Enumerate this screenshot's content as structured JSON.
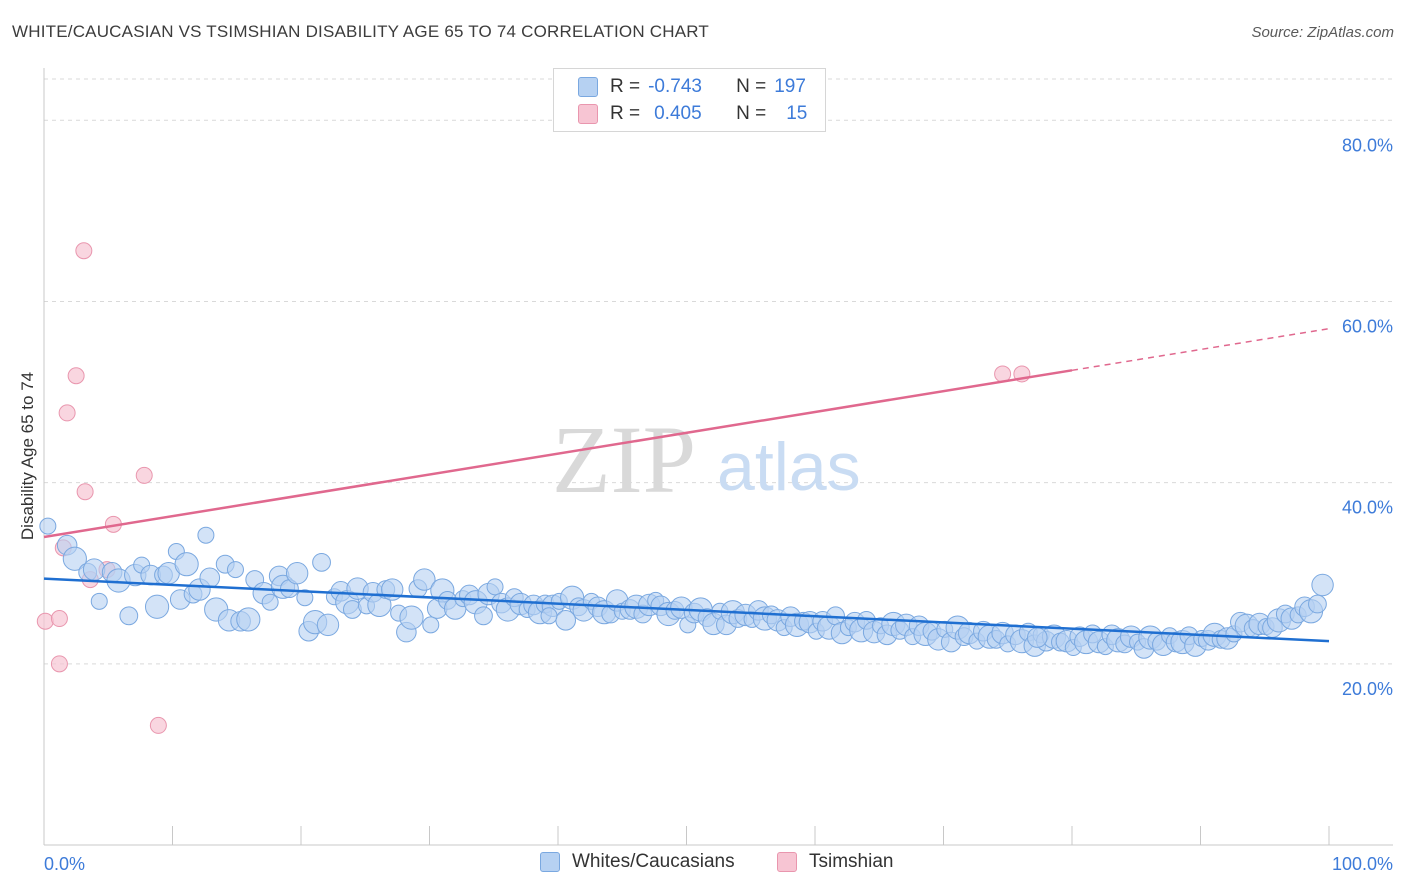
{
  "header": {
    "title": "WHITE/CAUCASIAN VS TSIMSHIAN DISABILITY AGE 65 TO 74 CORRELATION CHART",
    "source": "Source: ZipAtlas.com"
  },
  "watermark": {
    "zip": "ZIP",
    "atlas": "atlas"
  },
  "colors": {
    "blue_fill": "#b6d1f2",
    "blue_stroke": "#7aa8e0",
    "blue_line": "#1f6fd1",
    "pink_fill": "#f7c5d3",
    "pink_stroke": "#e996ae",
    "pink_line": "#e0688e",
    "axis_text": "#3d7bd9",
    "grid": "#d9d9d9"
  },
  "correlation_legend": [
    {
      "r_label": "R =",
      "r_value": "-0.743",
      "n_label": "N =",
      "n_value": "197",
      "series": "Whites/Caucasians"
    },
    {
      "r_label": "R =",
      "r_value": "0.405",
      "n_label": "N =",
      "n_value": "15",
      "series": "Tsimshian"
    }
  ],
  "chart_data": {
    "type": "scatter",
    "title": "WHITE/CAUCASIAN VS TSIMSHIAN DISABILITY AGE 65 TO 74 CORRELATION CHART",
    "xlabel": "",
    "ylabel": "Disability Age 65 to 74",
    "xlim": [
      0,
      100
    ],
    "ylim": [
      0,
      85
    ],
    "x_tick_labels": [
      "0.0%",
      "100.0%"
    ],
    "y_ticks": [
      20,
      40,
      60,
      80
    ],
    "y_tick_labels": [
      "20.0%",
      "40.0%",
      "60.0%",
      "80.0%"
    ],
    "grid": true,
    "legend_position": "bottom-center",
    "series": [
      {
        "name": "Whites/Caucasians",
        "r": -0.743,
        "n": 197,
        "trend": {
          "x": [
            0,
            100
          ],
          "y": [
            29.4,
            22.5
          ]
        },
        "points": [
          [
            0.3,
            35.2
          ],
          [
            1.8,
            33.1
          ],
          [
            2.4,
            31.6
          ],
          [
            3.4,
            30.1
          ],
          [
            3.9,
            30.4
          ],
          [
            4.3,
            26.9
          ],
          [
            5.3,
            30.1
          ],
          [
            5.8,
            29.2
          ],
          [
            6.6,
            25.3
          ],
          [
            7.1,
            29.8
          ],
          [
            7.6,
            30.9
          ],
          [
            8.3,
            29.8
          ],
          [
            8.8,
            26.3
          ],
          [
            9.3,
            29.8
          ],
          [
            9.7,
            30.0
          ],
          [
            10.3,
            32.4
          ],
          [
            10.6,
            27.1
          ],
          [
            11.1,
            31.0
          ],
          [
            11.6,
            27.7
          ],
          [
            12.1,
            28.2
          ],
          [
            12.6,
            34.2
          ],
          [
            12.9,
            29.5
          ],
          [
            13.4,
            26.0
          ],
          [
            14.1,
            31.0
          ],
          [
            14.4,
            24.8
          ],
          [
            14.9,
            30.4
          ],
          [
            15.3,
            24.7
          ],
          [
            15.9,
            24.9
          ],
          [
            16.4,
            29.3
          ],
          [
            17.1,
            27.8
          ],
          [
            17.6,
            26.8
          ],
          [
            18.3,
            29.7
          ],
          [
            18.6,
            28.5
          ],
          [
            19.1,
            28.3
          ],
          [
            19.7,
            30.0
          ],
          [
            20.3,
            27.3
          ],
          [
            20.6,
            23.6
          ],
          [
            21.1,
            24.6
          ],
          [
            21.6,
            31.2
          ],
          [
            22.1,
            24.3
          ],
          [
            22.6,
            27.4
          ],
          [
            23.1,
            28.0
          ],
          [
            23.6,
            26.8
          ],
          [
            24.0,
            26.0
          ],
          [
            24.4,
            28.3
          ],
          [
            25.1,
            26.4
          ],
          [
            25.6,
            27.9
          ],
          [
            26.1,
            26.5
          ],
          [
            26.6,
            28.2
          ],
          [
            27.1,
            28.2
          ],
          [
            27.6,
            25.6
          ],
          [
            28.2,
            23.5
          ],
          [
            28.6,
            25.1
          ],
          [
            29.1,
            28.3
          ],
          [
            29.6,
            29.3
          ],
          [
            30.1,
            24.3
          ],
          [
            30.6,
            26.1
          ],
          [
            31.0,
            28.1
          ],
          [
            31.4,
            27.0
          ],
          [
            32.0,
            26.1
          ],
          [
            32.6,
            27.2
          ],
          [
            33.1,
            27.6
          ],
          [
            33.6,
            26.8
          ],
          [
            34.2,
            25.3
          ],
          [
            34.6,
            27.7
          ],
          [
            35.1,
            28.5
          ],
          [
            35.6,
            26.7
          ],
          [
            36.1,
            26.0
          ],
          [
            36.6,
            27.3
          ],
          [
            37.1,
            26.6
          ],
          [
            37.6,
            26.0
          ],
          [
            38.1,
            26.5
          ],
          [
            38.6,
            25.7
          ],
          [
            39.0,
            26.6
          ],
          [
            39.6,
            26.4
          ],
          [
            40.1,
            26.9
          ],
          [
            40.6,
            24.8
          ],
          [
            41.1,
            27.3
          ],
          [
            41.6,
            26.3
          ],
          [
            42.0,
            25.9
          ],
          [
            42.6,
            26.9
          ],
          [
            43.1,
            26.3
          ],
          [
            43.6,
            25.7
          ],
          [
            44.1,
            25.5
          ],
          [
            44.6,
            27.0
          ],
          [
            45.0,
            25.8
          ],
          [
            45.6,
            26.0
          ],
          [
            46.1,
            26.3
          ],
          [
            46.6,
            25.5
          ],
          [
            47.1,
            26.5
          ],
          [
            47.6,
            27.0
          ],
          [
            48.0,
            26.4
          ],
          [
            48.6,
            25.5
          ],
          [
            49.1,
            25.9
          ],
          [
            49.6,
            26.2
          ],
          [
            50.1,
            24.3
          ],
          [
            50.6,
            25.6
          ],
          [
            51.1,
            26.0
          ],
          [
            51.6,
            25.1
          ],
          [
            52.1,
            24.4
          ],
          [
            52.6,
            25.8
          ],
          [
            53.1,
            24.3
          ],
          [
            53.6,
            25.7
          ],
          [
            54.0,
            25.0
          ],
          [
            54.6,
            25.4
          ],
          [
            55.1,
            24.9
          ],
          [
            55.6,
            25.9
          ],
          [
            56.1,
            25.0
          ],
          [
            56.6,
            25.4
          ],
          [
            57.1,
            24.8
          ],
          [
            57.6,
            24.0
          ],
          [
            58.1,
            25.2
          ],
          [
            58.6,
            24.3
          ],
          [
            59.1,
            24.7
          ],
          [
            59.6,
            24.6
          ],
          [
            60.1,
            23.6
          ],
          [
            60.6,
            24.7
          ],
          [
            61.1,
            24.0
          ],
          [
            61.6,
            25.3
          ],
          [
            62.1,
            23.4
          ],
          [
            62.6,
            24.0
          ],
          [
            63.1,
            24.6
          ],
          [
            63.6,
            23.7
          ],
          [
            64.0,
            24.8
          ],
          [
            64.6,
            23.5
          ],
          [
            65.1,
            24.2
          ],
          [
            65.6,
            23.2
          ],
          [
            66.1,
            24.4
          ],
          [
            66.6,
            23.7
          ],
          [
            67.1,
            24.3
          ],
          [
            67.6,
            23.0
          ],
          [
            68.1,
            24.2
          ],
          [
            68.6,
            23.3
          ],
          [
            69.1,
            23.6
          ],
          [
            69.6,
            22.7
          ],
          [
            70.1,
            23.8
          ],
          [
            70.6,
            22.4
          ],
          [
            71.1,
            24.0
          ],
          [
            71.6,
            23.0
          ],
          [
            72.0,
            23.4
          ],
          [
            72.6,
            22.5
          ],
          [
            73.1,
            23.6
          ],
          [
            73.6,
            23.0
          ],
          [
            74.1,
            22.7
          ],
          [
            74.6,
            23.4
          ],
          [
            75.0,
            22.2
          ],
          [
            75.6,
            23.2
          ],
          [
            76.1,
            22.5
          ],
          [
            76.6,
            23.5
          ],
          [
            77.1,
            22.0
          ],
          [
            77.6,
            23.2
          ],
          [
            78.0,
            22.5
          ],
          [
            78.6,
            23.0
          ],
          [
            79.1,
            22.4
          ],
          [
            79.6,
            22.5
          ],
          [
            80.1,
            21.8
          ],
          [
            80.6,
            23.0
          ],
          [
            81.1,
            22.4
          ],
          [
            81.6,
            23.3
          ],
          [
            82.1,
            22.4
          ],
          [
            82.6,
            21.9
          ],
          [
            83.1,
            23.2
          ],
          [
            83.6,
            22.6
          ],
          [
            84.1,
            22.2
          ],
          [
            84.6,
            23.0
          ],
          [
            85.1,
            22.4
          ],
          [
            85.6,
            21.7
          ],
          [
            86.1,
            22.9
          ],
          [
            86.6,
            22.5
          ],
          [
            87.1,
            22.1
          ],
          [
            87.6,
            23.1
          ],
          [
            88.1,
            22.4
          ],
          [
            88.6,
            22.4
          ],
          [
            89.1,
            23.1
          ],
          [
            89.6,
            22.0
          ],
          [
            90.1,
            22.8
          ],
          [
            90.6,
            22.6
          ],
          [
            91.1,
            23.2
          ],
          [
            91.6,
            22.7
          ],
          [
            92.1,
            22.8
          ],
          [
            92.6,
            23.3
          ],
          [
            93.1,
            24.6
          ],
          [
            93.6,
            24.2
          ],
          [
            94.1,
            23.9
          ],
          [
            94.6,
            24.4
          ],
          [
            95.1,
            24.1
          ],
          [
            95.6,
            24.0
          ],
          [
            96.1,
            24.8
          ],
          [
            96.6,
            25.5
          ],
          [
            97.1,
            25.0
          ],
          [
            97.6,
            25.4
          ],
          [
            98.1,
            26.3
          ],
          [
            98.6,
            25.8
          ],
          [
            99.1,
            26.6
          ],
          [
            99.5,
            28.7
          ],
          [
            39.3,
            25.3
          ],
          [
            77.3,
            22.9
          ]
        ]
      },
      {
        "name": "Tsimshian",
        "r": 0.405,
        "n": 15,
        "trend": {
          "x": [
            0,
            80
          ],
          "y": [
            34.0,
            52.4
          ]
        },
        "trend_dashed_to": {
          "x": 100,
          "y": 57.0
        },
        "points": [
          [
            0.1,
            24.7
          ],
          [
            1.2,
            20.0
          ],
          [
            1.5,
            32.8
          ],
          [
            1.8,
            47.7
          ],
          [
            2.5,
            51.8
          ],
          [
            3.1,
            65.6
          ],
          [
            3.2,
            39.0
          ],
          [
            3.6,
            29.3
          ],
          [
            4.9,
            30.4
          ],
          [
            5.4,
            35.4
          ],
          [
            7.8,
            40.8
          ],
          [
            8.9,
            13.2
          ],
          [
            74.6,
            52.0
          ],
          [
            76.1,
            52.0
          ],
          [
            1.2,
            25.0
          ]
        ]
      }
    ]
  }
}
